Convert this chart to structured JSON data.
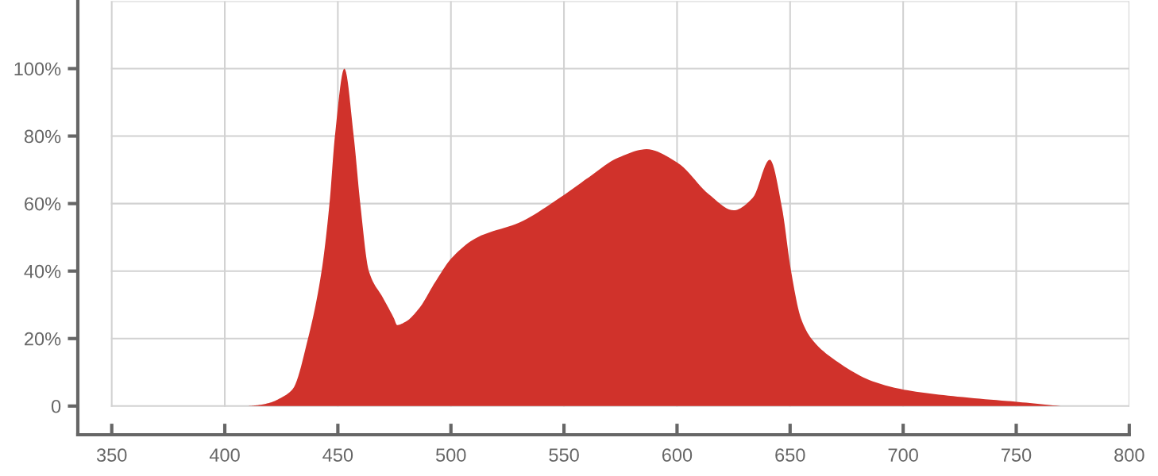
{
  "chart_data": {
    "type": "area",
    "x": [
      410,
      415,
      420,
      425,
      430,
      436.8,
      442.8,
      446.3,
      448.7,
      452.9,
      457,
      459.9,
      463.7,
      470,
      474.8,
      476.2,
      480,
      486,
      493,
      500.5,
      511.7,
      530.3,
      548.8,
      561,
      574,
      586.5,
      600.4,
      614,
      625,
      633.5,
      641,
      646.4,
      650.3,
      654.8,
      659.4,
      671.2,
      686.6,
      701.6,
      724,
      751,
      769.6
    ],
    "series": [
      {
        "color": "#d0322b",
        "values": [
          0,
          0.3,
          1,
          2.5,
          5,
          20,
          40,
          60,
          80,
          100,
          80,
          60,
          40,
          32,
          26,
          24,
          25,
          29,
          36.7,
          44,
          50,
          54.4,
          62,
          67.8,
          73.6,
          76.1,
          72,
          62.8,
          58,
          61.7,
          73,
          58.8,
          40.5,
          26,
          20,
          13,
          7.3,
          4.7,
          2.8,
          1.2,
          0
        ]
      }
    ],
    "xlim": [
      335,
      800
    ],
    "ylim": [
      -8.5,
      120
    ],
    "xticks": [
      350,
      400,
      450,
      500,
      550,
      600,
      650,
      700,
      750,
      800
    ],
    "yticks": [
      0,
      {
        "value": 20,
        "label": "20%"
      },
      {
        "value": 40,
        "label": "40%"
      },
      {
        "value": 60,
        "label": "60%"
      },
      {
        "value": 80,
        "label": "80%"
      },
      {
        "value": 100,
        "label": "100%"
      }
    ],
    "grid": true
  }
}
